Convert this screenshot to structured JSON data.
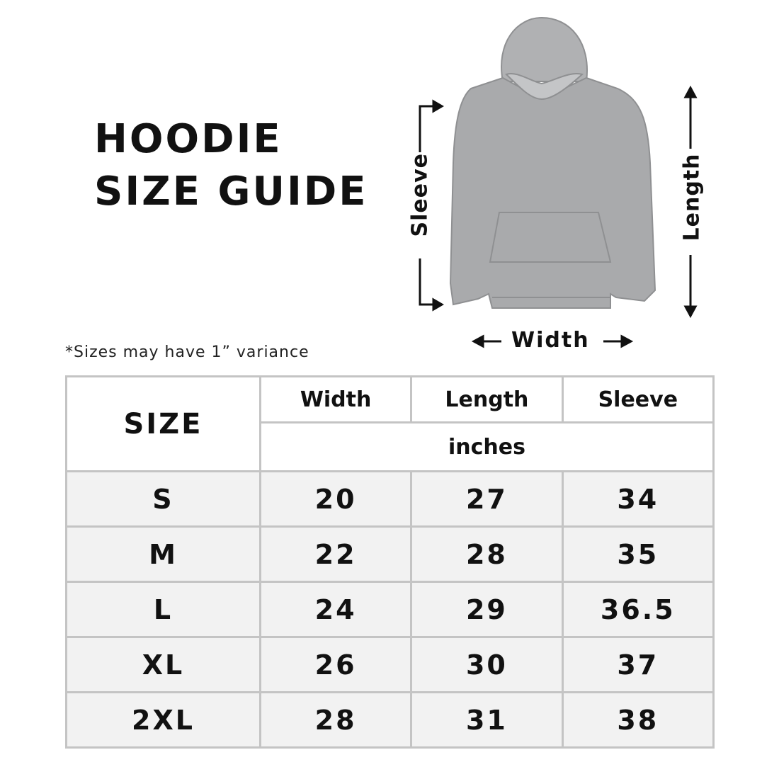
{
  "title_lines": [
    "HOODIE",
    "SIZE GUIDE"
  ],
  "note": "*Sizes may have 1” variance",
  "diagram": {
    "sleeve": "Sleeve",
    "length": "Length",
    "width": "Width"
  },
  "table": {
    "size_header": "SIZE",
    "columns": [
      "Width",
      "Length",
      "Sleeve"
    ],
    "unit": "inches",
    "rows": [
      {
        "size": "S",
        "width": "20",
        "length": "27",
        "sleeve": "34"
      },
      {
        "size": "M",
        "width": "22",
        "length": "28",
        "sleeve": "35"
      },
      {
        "size": "L",
        "width": "24",
        "length": "29",
        "sleeve": "36.5"
      },
      {
        "size": "XL",
        "width": "26",
        "length": "30",
        "sleeve": "37"
      },
      {
        "size": "2XL",
        "width": "28",
        "length": "31",
        "sleeve": "38"
      }
    ]
  },
  "colors": {
    "hoodie": "#a9aaac",
    "row_bg": "#f2f2f2",
    "border": "#c4c4c4"
  }
}
